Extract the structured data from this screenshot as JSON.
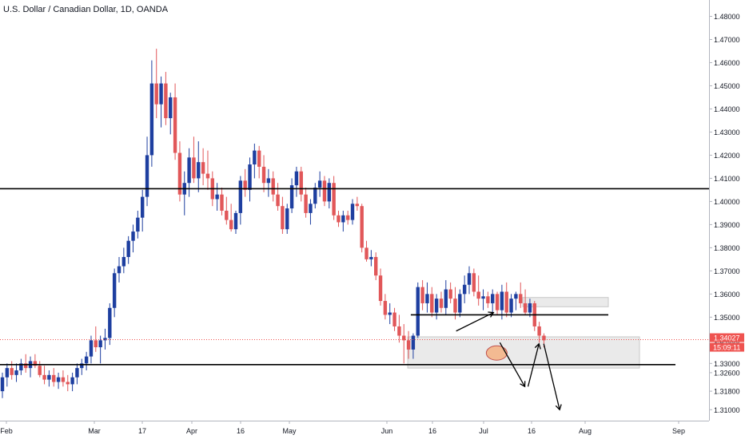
{
  "chart_data": {
    "type": "candlestick",
    "title": "U.S. Dollar / Canadian Dollar, 1D, OANDA",
    "y_axis": {
      "ticks": [
        "1.48000",
        "1.47000",
        "1.46000",
        "1.45000",
        "1.44000",
        "1.43000",
        "1.42000",
        "1.41000",
        "1.40000",
        "1.39000",
        "1.38000",
        "1.37000",
        "1.36000",
        "1.35000",
        "1.34000",
        "1.33000",
        "1.32600",
        "1.31800",
        "1.31000"
      ],
      "range": [
        1.307,
        1.485
      ]
    },
    "x_axis": {
      "ticks": [
        "Feb",
        "Mar",
        "17",
        "Apr",
        "16",
        "May",
        "Jun",
        "16",
        "Jul",
        "16",
        "Aug",
        "Sep"
      ]
    },
    "price_label": {
      "value": "1.34027",
      "time": "15:09:11",
      "color": "#ef5350"
    },
    "colors": {
      "up": "#1e3fa0",
      "down": "#e15759",
      "line": "#000000",
      "zone": "#e6e6e6",
      "circle": "#f4b183"
    },
    "horizontal_levels": [
      {
        "name": "resistance",
        "price": 1.4055
      },
      {
        "name": "support",
        "price": 1.3295
      },
      {
        "name": "range-low",
        "price": 1.351
      }
    ],
    "zones": [
      {
        "name": "lower-zone",
        "from": 1.3415,
        "to": 1.328
      },
      {
        "name": "upper-zone",
        "from": 1.3585,
        "to": 1.3545
      }
    ],
    "candles": [
      [
        1.318,
        1.326,
        1.315,
        1.324
      ],
      [
        1.324,
        1.33,
        1.32,
        1.328
      ],
      [
        1.328,
        1.331,
        1.323,
        1.325
      ],
      [
        1.325,
        1.33,
        1.322,
        1.327
      ],
      [
        1.327,
        1.332,
        1.325,
        1.33
      ],
      [
        1.33,
        1.334,
        1.326,
        1.328
      ],
      [
        1.328,
        1.333,
        1.324,
        1.331
      ],
      [
        1.331,
        1.334,
        1.328,
        1.329
      ],
      [
        1.329,
        1.331,
        1.324,
        1.325
      ],
      [
        1.325,
        1.329,
        1.321,
        1.323
      ],
      [
        1.323,
        1.327,
        1.32,
        1.325
      ],
      [
        1.325,
        1.328,
        1.32,
        1.322
      ],
      [
        1.322,
        1.326,
        1.319,
        1.324
      ],
      [
        1.324,
        1.327,
        1.32,
        1.322
      ],
      [
        1.322,
        1.325,
        1.318,
        1.321
      ],
      [
        1.321,
        1.326,
        1.318,
        1.324
      ],
      [
        1.324,
        1.33,
        1.321,
        1.328
      ],
      [
        1.328,
        1.332,
        1.325,
        1.33
      ],
      [
        1.33,
        1.335,
        1.327,
        1.333
      ],
      [
        1.333,
        1.342,
        1.33,
        1.34
      ],
      [
        1.34,
        1.346,
        1.335,
        1.337
      ],
      [
        1.337,
        1.342,
        1.33,
        1.34
      ],
      [
        1.34,
        1.345,
        1.336,
        1.341
      ],
      [
        1.341,
        1.356,
        1.338,
        1.354
      ],
      [
        1.354,
        1.371,
        1.35,
        1.369
      ],
      [
        1.369,
        1.376,
        1.365,
        1.372
      ],
      [
        1.372,
        1.38,
        1.369,
        1.376
      ],
      [
        1.376,
        1.385,
        1.373,
        1.383
      ],
      [
        1.383,
        1.39,
        1.378,
        1.387
      ],
      [
        1.387,
        1.396,
        1.384,
        1.393
      ],
      [
        1.393,
        1.405,
        1.387,
        1.402
      ],
      [
        1.402,
        1.428,
        1.398,
        1.42
      ],
      [
        1.42,
        1.461,
        1.415,
        1.451
      ],
      [
        1.451,
        1.466,
        1.436,
        1.442
      ],
      [
        1.442,
        1.454,
        1.432,
        1.451
      ],
      [
        1.451,
        1.456,
        1.433,
        1.436
      ],
      [
        1.436,
        1.447,
        1.429,
        1.445
      ],
      [
        1.445,
        1.451,
        1.418,
        1.421
      ],
      [
        1.421,
        1.426,
        1.4,
        1.403
      ],
      [
        1.403,
        1.413,
        1.394,
        1.408
      ],
      [
        1.408,
        1.423,
        1.402,
        1.419
      ],
      [
        1.419,
        1.428,
        1.408,
        1.41
      ],
      [
        1.41,
        1.426,
        1.404,
        1.417
      ],
      [
        1.417,
        1.423,
        1.407,
        1.412
      ],
      [
        1.412,
        1.422,
        1.405,
        1.41
      ],
      [
        1.41,
        1.413,
        1.398,
        1.401
      ],
      [
        1.401,
        1.408,
        1.396,
        1.403
      ],
      [
        1.403,
        1.406,
        1.394,
        1.396
      ],
      [
        1.396,
        1.402,
        1.39,
        1.392
      ],
      [
        1.392,
        1.399,
        1.387,
        1.388
      ],
      [
        1.388,
        1.396,
        1.386,
        1.395
      ],
      [
        1.395,
        1.411,
        1.39,
        1.409
      ],
      [
        1.409,
        1.414,
        1.402,
        1.405
      ],
      [
        1.405,
        1.419,
        1.4,
        1.416
      ],
      [
        1.416,
        1.425,
        1.41,
        1.422
      ],
      [
        1.422,
        1.424,
        1.41,
        1.415
      ],
      [
        1.415,
        1.42,
        1.404,
        1.408
      ],
      [
        1.408,
        1.414,
        1.402,
        1.41
      ],
      [
        1.41,
        1.413,
        1.4,
        1.403
      ],
      [
        1.403,
        1.408,
        1.396,
        1.398
      ],
      [
        1.398,
        1.402,
        1.386,
        1.388
      ],
      [
        1.388,
        1.399,
        1.386,
        1.397
      ],
      [
        1.397,
        1.41,
        1.395,
        1.407
      ],
      [
        1.407,
        1.415,
        1.402,
        1.413
      ],
      [
        1.413,
        1.415,
        1.4,
        1.403
      ],
      [
        1.403,
        1.406,
        1.393,
        1.395
      ],
      [
        1.395,
        1.401,
        1.39,
        1.399
      ],
      [
        1.399,
        1.408,
        1.397,
        1.406
      ],
      [
        1.406,
        1.413,
        1.402,
        1.409
      ],
      [
        1.409,
        1.411,
        1.398,
        1.4
      ],
      [
        1.4,
        1.41,
        1.397,
        1.408
      ],
      [
        1.408,
        1.411,
        1.392,
        1.394
      ],
      [
        1.394,
        1.396,
        1.389,
        1.391
      ],
      [
        1.391,
        1.396,
        1.387,
        1.394
      ],
      [
        1.394,
        1.396,
        1.39,
        1.392
      ],
      [
        1.392,
        1.401,
        1.39,
        1.399
      ],
      [
        1.399,
        1.402,
        1.396,
        1.398
      ],
      [
        1.398,
        1.399,
        1.378,
        1.38
      ],
      [
        1.38,
        1.383,
        1.374,
        1.375
      ],
      [
        1.375,
        1.379,
        1.372,
        1.376
      ],
      [
        1.376,
        1.378,
        1.366,
        1.368
      ],
      [
        1.368,
        1.371,
        1.355,
        1.357
      ],
      [
        1.357,
        1.36,
        1.349,
        1.351
      ],
      [
        1.351,
        1.356,
        1.347,
        1.352
      ],
      [
        1.352,
        1.354,
        1.344,
        1.346
      ],
      [
        1.346,
        1.351,
        1.339,
        1.342
      ],
      [
        1.342,
        1.347,
        1.33,
        1.34
      ],
      [
        1.34,
        1.344,
        1.332,
        1.336
      ],
      [
        1.336,
        1.343,
        1.332,
        1.342
      ],
      [
        1.342,
        1.365,
        1.341,
        1.363
      ],
      [
        1.363,
        1.366,
        1.353,
        1.356
      ],
      [
        1.356,
        1.365,
        1.352,
        1.36
      ],
      [
        1.36,
        1.363,
        1.35,
        1.352
      ],
      [
        1.352,
        1.36,
        1.349,
        1.358
      ],
      [
        1.358,
        1.361,
        1.352,
        1.354
      ],
      [
        1.354,
        1.366,
        1.351,
        1.362
      ],
      [
        1.362,
        1.365,
        1.356,
        1.358
      ],
      [
        1.358,
        1.363,
        1.349,
        1.352
      ],
      [
        1.352,
        1.362,
        1.35,
        1.36
      ],
      [
        1.36,
        1.368,
        1.356,
        1.364
      ],
      [
        1.364,
        1.372,
        1.36,
        1.369
      ],
      [
        1.369,
        1.371,
        1.359,
        1.361
      ],
      [
        1.361,
        1.368,
        1.355,
        1.358
      ],
      [
        1.358,
        1.362,
        1.353,
        1.359
      ],
      [
        1.359,
        1.361,
        1.354,
        1.356
      ],
      [
        1.356,
        1.362,
        1.352,
        1.36
      ],
      [
        1.36,
        1.361,
        1.351,
        1.353
      ],
      [
        1.353,
        1.364,
        1.349,
        1.361
      ],
      [
        1.361,
        1.365,
        1.35,
        1.352
      ],
      [
        1.352,
        1.36,
        1.35,
        1.358
      ],
      [
        1.358,
        1.361,
        1.353,
        1.36
      ],
      [
        1.36,
        1.365,
        1.354,
        1.356
      ],
      [
        1.356,
        1.362,
        1.351,
        1.352
      ],
      [
        1.352,
        1.358,
        1.35,
        1.356
      ],
      [
        1.356,
        1.357,
        1.344,
        1.346
      ],
      [
        1.346,
        1.348,
        1.339,
        1.342
      ],
      [
        1.342,
        1.343,
        1.337,
        1.34
      ]
    ],
    "projection_path": [
      [
        96,
        1.344
      ],
      [
        104,
        1.352
      ],
      [
        107,
        1.339
      ],
      [
        109,
        1.32
      ],
      [
        111,
        1.335
      ],
      [
        112,
        1.325
      ],
      [
        118,
        1.31
      ]
    ],
    "annotation_circle": {
      "index": 104,
      "price": 1.3345
    }
  }
}
